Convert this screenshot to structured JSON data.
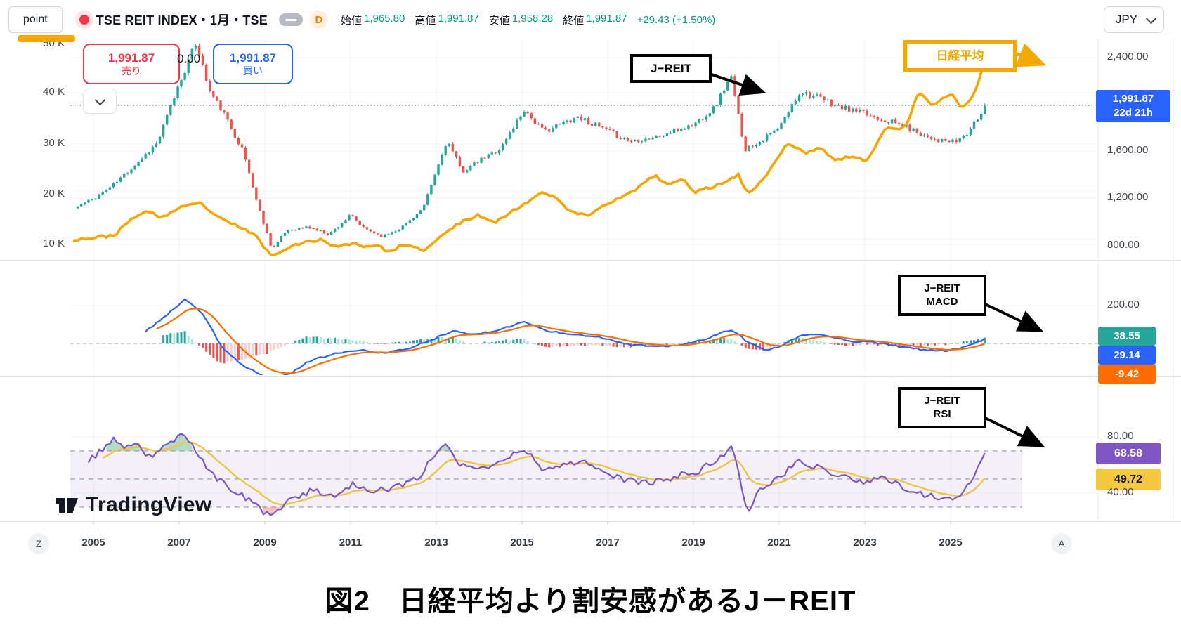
{
  "header": {
    "point_label": "point",
    "symbol_title": "TSE REIT INDEX・1月・TSE",
    "interval_badge": "D",
    "ohlc": [
      {
        "label": "始値",
        "value": "1,965.80"
      },
      {
        "label": "高値",
        "value": "1,991.87"
      },
      {
        "label": "安値",
        "value": "1,958.28"
      },
      {
        "label": "終値",
        "value": "1,991.87"
      }
    ],
    "change": "+29.43 (+1.50%)",
    "currency": "JPY"
  },
  "trade": {
    "sell_price": "1,991.87",
    "sell_label": "売り",
    "spread": "0.00",
    "buy_price": "1,991.87",
    "buy_label": "買い"
  },
  "scales": {
    "left": [
      "50 K",
      "40 K",
      "30 K",
      "20 K",
      "10 K"
    ],
    "right": [
      "2,400.00",
      "1,600.00",
      "1,200.00",
      "800.00"
    ]
  },
  "last_badge": {
    "price": "1,991.87",
    "countdown": "22d 21h"
  },
  "macd_axis": {
    "tick": "200.00",
    "hist": "38.55",
    "macd": "29.14",
    "signal": "-9.42"
  },
  "rsi_axis": {
    "top": "80.00",
    "rsi": "68.58",
    "ma": "49.72",
    "bottom": "40.00"
  },
  "ann": {
    "jreit": "J−REIT",
    "nikkei": "日経平均",
    "macd1": "J−REIT",
    "macd2": "MACD",
    "rsi1": "J−REIT",
    "rsi2": "RSI"
  },
  "time": {
    "z": "Z",
    "years": [
      "2005",
      "2007",
      "2009",
      "2011",
      "2013",
      "2015",
      "2017",
      "2019",
      "2021",
      "2023",
      "2025"
    ],
    "a": "A"
  },
  "watermark": {
    "text": "TradingView"
  },
  "caption": {
    "text": "図2　日経平均より割安感があるJ－REIT"
  },
  "colors": {
    "up": "#26a69a",
    "down": "#ef5350",
    "nikkei": "#f7a600",
    "macd_line": "#2962ff",
    "signal_line": "#ff6d00",
    "hist_pos": "#26a69a",
    "hist_pos_light": "#ace5de",
    "hist_neg": "#ef5350",
    "hist_neg_light": "#fccbcd",
    "rsi_line": "#7e57c2",
    "rsi_ma_line": "#eec643",
    "value_green": "#089981",
    "sell_red": "#f23645",
    "buy_blue": "#2962ff",
    "badge_teal": "#26a69a",
    "badge_blue": "#2962ff",
    "badge_orange": "#ff6d00",
    "badge_purple": "#7e57c2",
    "badge_yellow": "#f5c842",
    "annotation_orange": "#f5a800"
  },
  "chart_data": [
    {
      "type": "candlestick",
      "name": "TSE REIT INDEX (J-REIT) monthly",
      "x_axis": {
        "range": [
          2004.5,
          2025.9
        ],
        "tick_years": [
          2005,
          2007,
          2009,
          2011,
          2013,
          2015,
          2017,
          2019,
          2021,
          2023,
          2025
        ]
      },
      "y_axis": {
        "side": "right",
        "ticks": [
          800,
          1200,
          1600,
          2400
        ],
        "scale": "linear",
        "last_value": 1991.87
      },
      "ohlc_last": {
        "open": 1965.8,
        "high": 1991.87,
        "low": 1958.28,
        "close": 1991.87,
        "change": 29.43,
        "change_pct": 1.5
      },
      "close_anchors": [
        [
          2004.55,
          1120
        ],
        [
          2005,
          1200
        ],
        [
          2005.5,
          1330
        ],
        [
          2006,
          1500
        ],
        [
          2006.5,
          1680
        ],
        [
          2007,
          2180
        ],
        [
          2007.4,
          2530
        ],
        [
          2007.7,
          2120
        ],
        [
          2008,
          1950
        ],
        [
          2008.5,
          1600
        ],
        [
          2008.83,
          1150
        ],
        [
          2009.17,
          770
        ],
        [
          2009.5,
          930
        ],
        [
          2010,
          960
        ],
        [
          2010.5,
          900
        ],
        [
          2011,
          1060
        ],
        [
          2011.3,
          950
        ],
        [
          2011.75,
          880
        ],
        [
          2012.2,
          960
        ],
        [
          2012.7,
          1120
        ],
        [
          2013.25,
          1700
        ],
        [
          2013.6,
          1430
        ],
        [
          2014,
          1520
        ],
        [
          2014.5,
          1630
        ],
        [
          2015.05,
          1960
        ],
        [
          2015.5,
          1770
        ],
        [
          2016.3,
          1900
        ],
        [
          2016.8,
          1810
        ],
        [
          2017.5,
          1690
        ],
        [
          2018.2,
          1730
        ],
        [
          2019,
          1830
        ],
        [
          2019.5,
          1980
        ],
        [
          2019.87,
          2250
        ],
        [
          2020.2,
          1620
        ],
        [
          2020.6,
          1700
        ],
        [
          2021,
          1800
        ],
        [
          2021.5,
          2120
        ],
        [
          2021.9,
          2060
        ],
        [
          2022.4,
          1980
        ],
        [
          2022.9,
          1930
        ],
        [
          2023.4,
          1880
        ],
        [
          2023.9,
          1820
        ],
        [
          2024.4,
          1740
        ],
        [
          2024.8,
          1690
        ],
        [
          2025.1,
          1680
        ],
        [
          2025.4,
          1760
        ],
        [
          2025.65,
          1890
        ],
        [
          2025.85,
          1991.87
        ]
      ]
    },
    {
      "type": "line",
      "name": "日経平均 (Nikkei 225) overlay",
      "y_axis": {
        "side": "left",
        "ticks_k": [
          10,
          20,
          30,
          40,
          50
        ],
        "unit": "thousand JPY"
      },
      "anchors_k": [
        [
          2004.55,
          11
        ],
        [
          2005,
          11.3
        ],
        [
          2005.5,
          11.9
        ],
        [
          2005.95,
          15.5
        ],
        [
          2006.3,
          16.5
        ],
        [
          2006.6,
          15.3
        ],
        [
          2007,
          17.2
        ],
        [
          2007.5,
          18.2
        ],
        [
          2007.9,
          15.3
        ],
        [
          2008.4,
          13.5
        ],
        [
          2008.75,
          12
        ],
        [
          2009.17,
          7.6
        ],
        [
          2009.6,
          9.8
        ],
        [
          2010.3,
          11
        ],
        [
          2010.7,
          9.4
        ],
        [
          2011.05,
          10.4
        ],
        [
          2011.25,
          9.6
        ],
        [
          2011.6,
          9.9
        ],
        [
          2011.9,
          8.5
        ],
        [
          2012.2,
          9.8
        ],
        [
          2012.75,
          8.9
        ],
        [
          2013.1,
          11.5
        ],
        [
          2013.45,
          13.8
        ],
        [
          2013.95,
          15.8
        ],
        [
          2014.4,
          14.5
        ],
        [
          2014.95,
          17.5
        ],
        [
          2015.5,
          20.5
        ],
        [
          2015.8,
          19.2
        ],
        [
          2016.15,
          16.3
        ],
        [
          2016.55,
          15.8
        ],
        [
          2016.95,
          18
        ],
        [
          2017.5,
          20
        ],
        [
          2017.95,
          22.7
        ],
        [
          2018.1,
          23.8
        ],
        [
          2018.35,
          21.8
        ],
        [
          2018.75,
          22.8
        ],
        [
          2019.05,
          20.4
        ],
        [
          2019.5,
          21.5
        ],
        [
          2020.05,
          23.8
        ],
        [
          2020.25,
          20
        ],
        [
          2020.6,
          22.5
        ],
        [
          2020.95,
          27
        ],
        [
          2021.2,
          30
        ],
        [
          2021.65,
          28
        ],
        [
          2021.95,
          29.3
        ],
        [
          2022.25,
          26.8
        ],
        [
          2022.7,
          27.3
        ],
        [
          2023.05,
          26.5
        ],
        [
          2023.5,
          33.5
        ],
        [
          2023.85,
          32.5
        ],
        [
          2024.05,
          35
        ],
        [
          2024.25,
          40.3
        ],
        [
          2024.55,
          37.5
        ],
        [
          2024.85,
          39
        ],
        [
          2025.05,
          39.8
        ],
        [
          2025.25,
          36.8
        ],
        [
          2025.5,
          39
        ],
        [
          2025.65,
          42
        ],
        [
          2025.78,
          46
        ],
        [
          2025.85,
          52
        ]
      ]
    },
    {
      "type": "macd",
      "name": "J-REIT MACD",
      "y_axis": {
        "tick": 200
      },
      "last": {
        "histogram": 38.55,
        "macd": 29.14,
        "signal": -9.42
      },
      "macd_anchors": [
        [
          2006.2,
          60
        ],
        [
          2006.9,
          185
        ],
        [
          2007.15,
          235
        ],
        [
          2007.6,
          140
        ],
        [
          2008,
          -20
        ],
        [
          2008.5,
          -120
        ],
        [
          2009.1,
          -185
        ],
        [
          2009.6,
          -160
        ],
        [
          2010,
          -95
        ],
        [
          2010.6,
          -55
        ],
        [
          2011.2,
          -35
        ],
        [
          2011.8,
          -50
        ],
        [
          2012.3,
          -30
        ],
        [
          2012.9,
          20
        ],
        [
          2013.4,
          70
        ],
        [
          2013.9,
          45
        ],
        [
          2014.5,
          75
        ],
        [
          2015.05,
          115
        ],
        [
          2015.6,
          65
        ],
        [
          2016.2,
          50
        ],
        [
          2016.8,
          35
        ],
        [
          2017.5,
          -5
        ],
        [
          2018.2,
          -18
        ],
        [
          2018.8,
          -5
        ],
        [
          2019.3,
          25
        ],
        [
          2019.9,
          75
        ],
        [
          2020.3,
          0
        ],
        [
          2020.7,
          -35
        ],
        [
          2021.05,
          -15
        ],
        [
          2021.5,
          45
        ],
        [
          2022,
          45
        ],
        [
          2022.6,
          15
        ],
        [
          2023.2,
          5
        ],
        [
          2023.8,
          -15
        ],
        [
          2024.4,
          -35
        ],
        [
          2024.9,
          -38
        ],
        [
          2025.3,
          -18
        ],
        [
          2025.6,
          5
        ],
        [
          2025.85,
          29.14
        ]
      ]
    },
    {
      "type": "rsi",
      "name": "J-REIT RSI",
      "bands": [
        70,
        50,
        30
      ],
      "y_axis": {
        "ticks": [
          80,
          40
        ]
      },
      "last": {
        "rsi": 68.58,
        "ma": 49.72
      },
      "rsi_anchors": [
        [
          2004.8,
          62
        ],
        [
          2005.1,
          68
        ],
        [
          2005.45,
          79
        ],
        [
          2005.7,
          71
        ],
        [
          2006,
          74
        ],
        [
          2006.3,
          66
        ],
        [
          2006.75,
          74
        ],
        [
          2007.1,
          84
        ],
        [
          2007.45,
          68
        ],
        [
          2007.7,
          55
        ],
        [
          2008.1,
          45
        ],
        [
          2008.6,
          36
        ],
        [
          2009.15,
          22
        ],
        [
          2009.6,
          36
        ],
        [
          2010.1,
          42
        ],
        [
          2010.6,
          38
        ],
        [
          2011.05,
          47
        ],
        [
          2011.45,
          41
        ],
        [
          2012,
          43
        ],
        [
          2012.6,
          52
        ],
        [
          2013.2,
          77
        ],
        [
          2013.6,
          59
        ],
        [
          2014.1,
          58
        ],
        [
          2014.6,
          64
        ],
        [
          2015.05,
          72
        ],
        [
          2015.5,
          57
        ],
        [
          2016.05,
          60
        ],
        [
          2016.4,
          64
        ],
        [
          2016.9,
          56
        ],
        [
          2017.4,
          49
        ],
        [
          2018,
          47
        ],
        [
          2018.6,
          52
        ],
        [
          2019.1,
          55
        ],
        [
          2019.6,
          65
        ],
        [
          2019.9,
          74
        ],
        [
          2020.25,
          27
        ],
        [
          2020.6,
          44
        ],
        [
          2021,
          51
        ],
        [
          2021.45,
          64
        ],
        [
          2021.9,
          58
        ],
        [
          2022.4,
          53
        ],
        [
          2022.9,
          48
        ],
        [
          2023.4,
          51
        ],
        [
          2023.9,
          44
        ],
        [
          2024.4,
          39
        ],
        [
          2024.8,
          36
        ],
        [
          2025.1,
          36
        ],
        [
          2025.4,
          46
        ],
        [
          2025.85,
          68.58
        ]
      ]
    }
  ]
}
